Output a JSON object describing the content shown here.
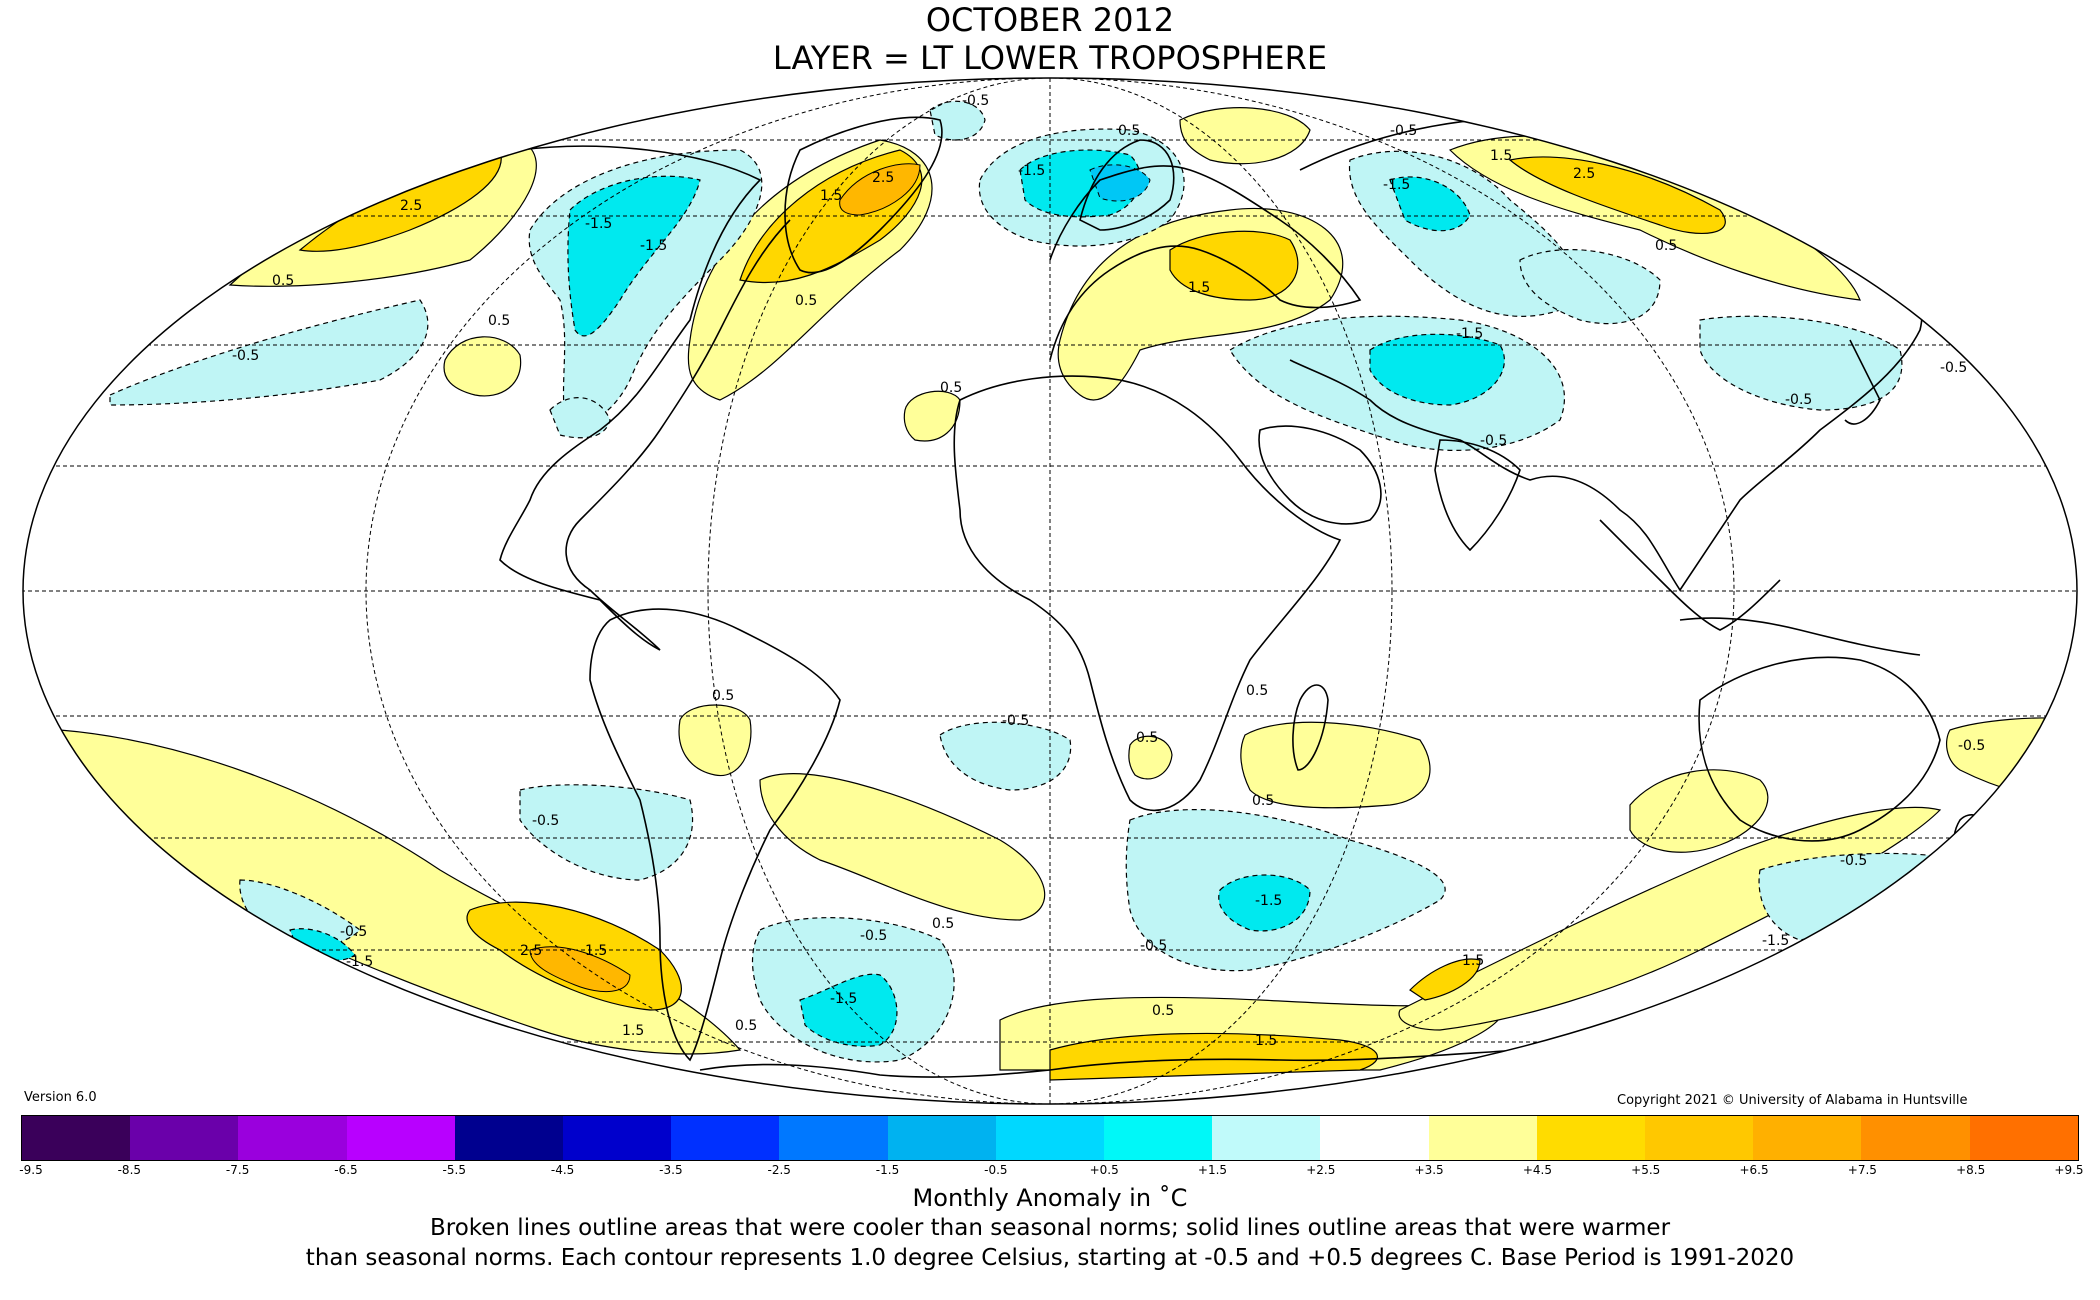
{
  "header": {
    "title_line1": "OCTOBER 2012",
    "title_line2": "LAYER = LT LOWER TROPOSPHERE"
  },
  "version": "Version 6.0",
  "copyright": "Copyright 2021 © University of Alabama in Huntsville",
  "contour_labels": [
    "0.5",
    "-0.5",
    "1.5",
    "-1.5",
    "2.5"
  ],
  "colors": {
    "warm_0_5": "#ffff99",
    "warm_1_5": "#ffd700",
    "warm_2_5": "#ffb700",
    "cool_0_5": "#bff5f5",
    "cool_1_5": "#00e9ef",
    "cool_2_5": "#00c7f5"
  },
  "colorbar": {
    "colors": [
      "#3a005a",
      "#6a00aa",
      "#9a00dd",
      "#b800ff",
      "#00008f",
      "#0000cc",
      "#0030ff",
      "#0078ff",
      "#00b2f0",
      "#00d8ff",
      "#00f8f8",
      "#c0fafa",
      "#ffffff",
      "#ffff99",
      "#ffdc00",
      "#ffc800",
      "#ffb000",
      "#ff9000",
      "#ff7000",
      "#ff5000",
      "#ff1800",
      "#dd0000",
      "#b50000"
    ],
    "ticks": [
      "-9.5",
      "-8.5",
      "-7.5",
      "-6.5",
      "-5.5",
      "-4.5",
      "-3.5",
      "-2.5",
      "-1.5",
      "-0.5",
      "+0.5",
      "+1.5",
      "+2.5",
      "+3.5",
      "+4.5",
      "+5.5",
      "+6.5",
      "+7.5",
      "+8.5",
      "+9.5"
    ],
    "tick_positions": [
      0,
      1,
      2,
      3,
      4,
      5,
      6,
      7,
      8,
      9,
      10,
      11,
      12,
      13,
      14,
      15,
      16,
      17,
      18,
      19
    ],
    "label": "Monthly Anomaly in ˚C"
  },
  "caption_line1": "Broken lines outline areas that were cooler than seasonal norms; solid lines outline areas that were warmer",
  "caption_line2": "than seasonal norms. Each contour represents 1.0 degree Celsius, starting at -0.5 and +0.5 degrees C. Base Period is 1991-2020"
}
